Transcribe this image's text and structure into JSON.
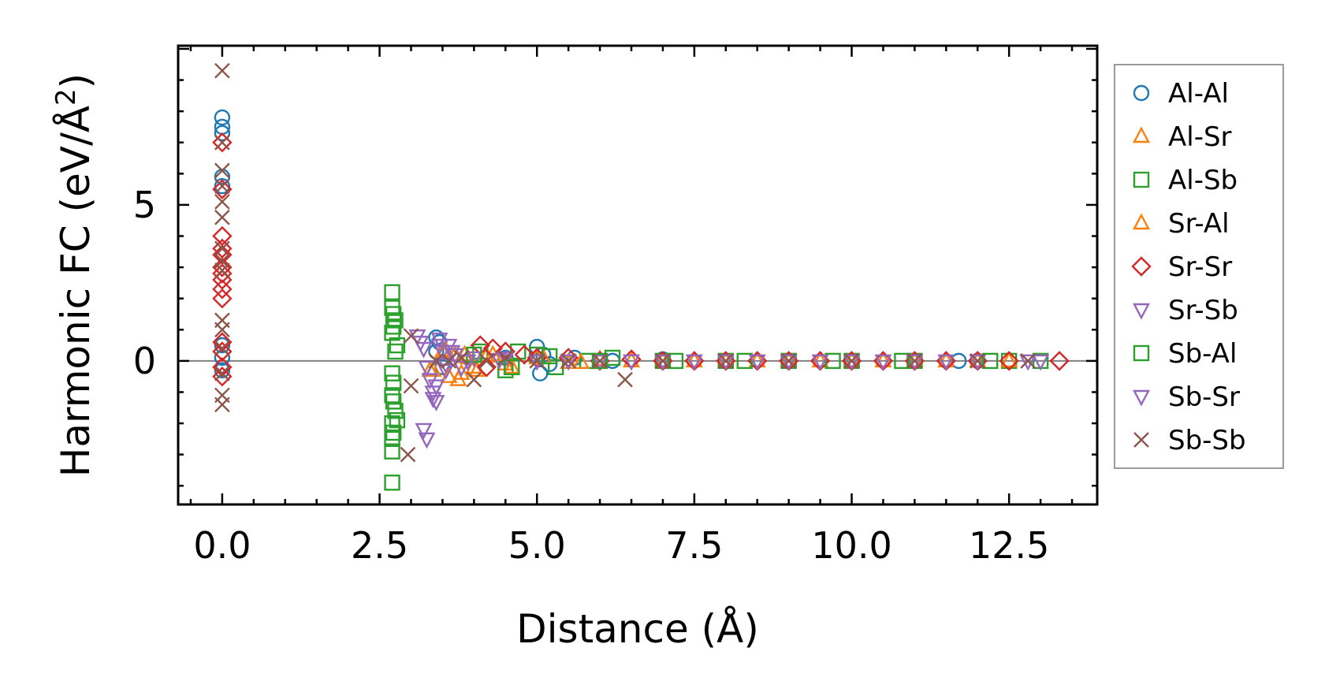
{
  "chart_data": {
    "type": "scatter",
    "xlabel": "Distance (Å)",
    "ylabel_main": "Harmonic FC (eV/Å",
    "ylabel_sup": "2",
    "ylabel_close": ")",
    "xlim": [
      -0.7,
      13.9
    ],
    "ylim": [
      -4.6,
      10.1
    ],
    "xticks": [
      {
        "v": 0.0,
        "label": "0.0"
      },
      {
        "v": 2.5,
        "label": "2.5"
      },
      {
        "v": 5.0,
        "label": "5.0"
      },
      {
        "v": 7.5,
        "label": "7.5"
      },
      {
        "v": 10.0,
        "label": "10.0"
      },
      {
        "v": 12.5,
        "label": "12.5"
      }
    ],
    "yticks": [
      {
        "v": 0,
        "label": "0"
      },
      {
        "v": 5,
        "label": "5"
      }
    ],
    "zero_line": 0,
    "legend_position": "outside-right",
    "series": [
      {
        "name": "Al-Al",
        "marker": "circle",
        "color": "#1f77b4",
        "points": [
          [
            0,
            7.8
          ],
          [
            0,
            7.5
          ],
          [
            0,
            7.3
          ],
          [
            0,
            5.9
          ],
          [
            0,
            5.6
          ],
          [
            0,
            0.5
          ],
          [
            0,
            0.1
          ],
          [
            0,
            -0.3
          ],
          [
            3.4,
            0.75
          ],
          [
            3.4,
            0.3
          ],
          [
            3.45,
            0.6
          ],
          [
            3.5,
            -0.2
          ],
          [
            4.5,
            0.1
          ],
          [
            5.0,
            0.45
          ],
          [
            5.05,
            -0.4
          ],
          [
            5.1,
            0.2
          ],
          [
            5.2,
            -0.1
          ],
          [
            5.6,
            0.1
          ],
          [
            6.2,
            0.0
          ],
          [
            7.0,
            0.05
          ],
          [
            8.0,
            0.0
          ],
          [
            9.0,
            0.0
          ],
          [
            10.0,
            0.0
          ],
          [
            11.7,
            0.0
          ],
          [
            12.0,
            0.0
          ]
        ]
      },
      {
        "name": "Al-Sr",
        "marker": "triangle-up",
        "color": "#ff7f0e",
        "points": [
          [
            3.3,
            -0.3
          ],
          [
            3.5,
            0.3
          ],
          [
            3.6,
            -0.5
          ],
          [
            3.7,
            0.2
          ],
          [
            3.8,
            -0.4
          ],
          [
            3.9,
            0.1
          ],
          [
            4.0,
            -0.2
          ],
          [
            4.2,
            0.15
          ],
          [
            4.5,
            -0.1
          ],
          [
            5.0,
            0.1
          ],
          [
            5.5,
            -0.05
          ],
          [
            6.0,
            0.05
          ],
          [
            7.0,
            0.0
          ],
          [
            8.0,
            0.0
          ],
          [
            9.0,
            0.0
          ],
          [
            10.0,
            0.0
          ],
          [
            11.0,
            0.0
          ],
          [
            12.0,
            0.0
          ]
        ]
      },
      {
        "name": "Al-Sb",
        "marker": "square",
        "color": "#2ca02c",
        "points": [
          [
            2.7,
            2.2
          ],
          [
            2.7,
            1.7
          ],
          [
            2.75,
            1.3
          ],
          [
            2.7,
            0.9
          ],
          [
            2.75,
            0.3
          ],
          [
            2.7,
            -0.4
          ],
          [
            2.7,
            -1.1
          ],
          [
            2.75,
            -1.6
          ],
          [
            2.7,
            -2.0
          ],
          [
            2.7,
            -2.5
          ],
          [
            2.7,
            -2.9
          ],
          [
            2.7,
            -3.9
          ],
          [
            4.1,
            0.3
          ],
          [
            4.5,
            -0.3
          ],
          [
            4.7,
            0.3
          ],
          [
            5.0,
            0.2
          ],
          [
            5.3,
            -0.2
          ],
          [
            5.8,
            0.0
          ],
          [
            6.2,
            0.1
          ],
          [
            7.0,
            0.0
          ],
          [
            8.0,
            0.0
          ],
          [
            9.0,
            0.0
          ],
          [
            10.0,
            0.0
          ],
          [
            11.0,
            0.0
          ],
          [
            12.5,
            0.0
          ],
          [
            13.0,
            0.0
          ]
        ]
      },
      {
        "name": "Sr-Al",
        "marker": "triangle-up",
        "color": "#ff7f0e",
        "points": [
          [
            3.35,
            -0.3
          ],
          [
            3.55,
            0.35
          ],
          [
            3.75,
            -0.6
          ],
          [
            3.85,
            0.2
          ],
          [
            4.05,
            -0.3
          ],
          [
            4.3,
            0.2
          ],
          [
            4.6,
            -0.2
          ],
          [
            5.1,
            0.1
          ],
          [
            5.7,
            -0.05
          ],
          [
            6.5,
            0.0
          ],
          [
            7.5,
            0.0
          ],
          [
            8.5,
            0.0
          ],
          [
            9.5,
            0.0
          ],
          [
            10.5,
            0.0
          ],
          [
            11.5,
            0.0
          ],
          [
            12.5,
            0.0
          ]
        ]
      },
      {
        "name": "Sr-Sr",
        "marker": "diamond",
        "color": "#d62728",
        "points": [
          [
            0,
            7.0
          ],
          [
            0,
            5.5
          ],
          [
            0,
            4.0
          ],
          [
            0,
            3.6
          ],
          [
            0,
            3.4
          ],
          [
            0,
            3.0
          ],
          [
            0,
            2.8
          ],
          [
            0,
            2.6
          ],
          [
            0,
            2.3
          ],
          [
            0,
            2.0
          ],
          [
            0,
            0.6
          ],
          [
            0,
            0.3
          ],
          [
            0,
            -0.2
          ],
          [
            0,
            -0.5
          ],
          [
            4.1,
            0.5
          ],
          [
            4.2,
            -0.2
          ],
          [
            4.3,
            0.4
          ],
          [
            4.5,
            0.3
          ],
          [
            4.8,
            0.2
          ],
          [
            5.0,
            0.1
          ],
          [
            5.5,
            0.1
          ],
          [
            6.0,
            0.0
          ],
          [
            6.5,
            0.05
          ],
          [
            7.0,
            0.0
          ],
          [
            7.5,
            0.0
          ],
          [
            8.0,
            0.0
          ],
          [
            8.5,
            0.0
          ],
          [
            9.0,
            0.0
          ],
          [
            9.5,
            0.0
          ],
          [
            10.0,
            0.0
          ],
          [
            10.5,
            0.0
          ],
          [
            11.0,
            0.0
          ],
          [
            11.5,
            0.0
          ],
          [
            12.0,
            0.0
          ],
          [
            12.5,
            0.0
          ],
          [
            13.3,
            0.0
          ]
        ]
      },
      {
        "name": "Sr-Sb",
        "marker": "triangle-down",
        "color": "#9467bd",
        "points": [
          [
            3.1,
            0.8
          ],
          [
            3.15,
            0.6
          ],
          [
            3.2,
            0.4
          ],
          [
            3.25,
            -0.2
          ],
          [
            3.3,
            -0.6
          ],
          [
            3.35,
            -1.0
          ],
          [
            3.4,
            -1.3
          ],
          [
            3.45,
            0.7
          ],
          [
            3.5,
            0.3
          ],
          [
            3.55,
            -0.3
          ],
          [
            3.6,
            0.5
          ],
          [
            3.7,
            0.2
          ],
          [
            3.8,
            -0.2
          ],
          [
            4.0,
            0.1
          ],
          [
            4.5,
            0.1
          ],
          [
            5.0,
            0.0
          ],
          [
            6.0,
            0.0
          ],
          [
            7.0,
            0.0
          ],
          [
            8.0,
            0.0
          ],
          [
            9.0,
            0.0
          ],
          [
            10.0,
            0.0
          ],
          [
            11.0,
            0.0
          ],
          [
            12.0,
            0.0
          ],
          [
            13.0,
            0.0
          ]
        ]
      },
      {
        "name": "Sb-Al",
        "marker": "square",
        "color": "#2ca02c",
        "points": [
          [
            2.72,
            1.5
          ],
          [
            2.72,
            1.1
          ],
          [
            2.78,
            0.5
          ],
          [
            2.72,
            -0.7
          ],
          [
            2.72,
            -1.3
          ],
          [
            2.78,
            -1.9
          ],
          [
            2.72,
            -2.3
          ],
          [
            4.0,
            0.2
          ],
          [
            4.6,
            -0.2
          ],
          [
            5.2,
            0.15
          ],
          [
            6.0,
            0.0
          ],
          [
            7.2,
            0.0
          ],
          [
            8.3,
            0.0
          ],
          [
            9.7,
            0.0
          ],
          [
            10.8,
            0.0
          ],
          [
            12.2,
            0.0
          ]
        ]
      },
      {
        "name": "Sb-Sr",
        "marker": "triangle-down",
        "color": "#9467bd",
        "points": [
          [
            3.2,
            -2.2
          ],
          [
            3.25,
            -2.5
          ],
          [
            3.35,
            -1.2
          ],
          [
            3.4,
            -0.8
          ],
          [
            3.45,
            0.5
          ],
          [
            3.55,
            -0.1
          ],
          [
            3.65,
            0.3
          ],
          [
            3.9,
            0.0
          ],
          [
            4.4,
            0.05
          ],
          [
            5.5,
            0.0
          ],
          [
            6.5,
            0.0
          ],
          [
            7.5,
            0.0
          ],
          [
            8.5,
            0.0
          ],
          [
            9.5,
            0.0
          ],
          [
            10.5,
            0.0
          ],
          [
            11.5,
            0.0
          ],
          [
            12.8,
            0.0
          ]
        ]
      },
      {
        "name": "Sb-Sb",
        "marker": "x",
        "color": "#8c564b",
        "points": [
          [
            0,
            9.3
          ],
          [
            0,
            7.0
          ],
          [
            0,
            6.1
          ],
          [
            0,
            5.6
          ],
          [
            0,
            5.1
          ],
          [
            0,
            4.6
          ],
          [
            0,
            3.6
          ],
          [
            0,
            3.2
          ],
          [
            0,
            2.9
          ],
          [
            0,
            1.3
          ],
          [
            0,
            1.0
          ],
          [
            0,
            0.4
          ],
          [
            0,
            -0.4
          ],
          [
            0,
            -1.1
          ],
          [
            0,
            -1.4
          ],
          [
            2.95,
            -3.0
          ],
          [
            3.0,
            0.8
          ],
          [
            3.0,
            -0.8
          ],
          [
            3.4,
            0.0
          ],
          [
            3.6,
            0.0
          ],
          [
            3.8,
            0.1
          ],
          [
            4.0,
            -0.6
          ],
          [
            4.2,
            0.0
          ],
          [
            4.5,
            0.1
          ],
          [
            5.0,
            0.0
          ],
          [
            5.5,
            0.0
          ],
          [
            6.0,
            0.0
          ],
          [
            6.4,
            -0.6
          ],
          [
            7.0,
            0.0
          ],
          [
            8.0,
            0.0
          ],
          [
            9.0,
            0.0
          ],
          [
            10.0,
            0.0
          ],
          [
            11.0,
            0.0
          ],
          [
            12.0,
            0.0
          ],
          [
            12.8,
            0.0
          ]
        ]
      }
    ]
  }
}
